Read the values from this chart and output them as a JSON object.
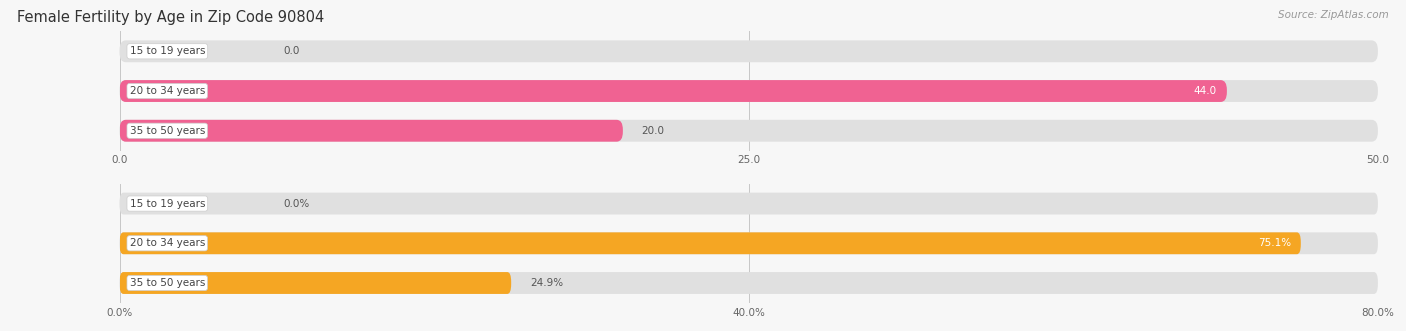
{
  "title": "Female Fertility by Age in Zip Code 90804",
  "source": "Source: ZipAtlas.com",
  "top_chart": {
    "categories": [
      "15 to 19 years",
      "20 to 34 years",
      "35 to 50 years"
    ],
    "values": [
      0.0,
      44.0,
      20.0
    ],
    "max_value": 50.0,
    "x_ticks": [
      0.0,
      25.0,
      50.0
    ],
    "x_tick_labels": [
      "0.0",
      "25.0",
      "50.0"
    ],
    "bar_color_main": "#f06292",
    "value_labels": [
      "0.0",
      "44.0",
      "20.0"
    ],
    "value_inside": [
      false,
      true,
      false
    ]
  },
  "bottom_chart": {
    "categories": [
      "15 to 19 years",
      "20 to 34 years",
      "35 to 50 years"
    ],
    "values": [
      0.0,
      75.1,
      24.9
    ],
    "max_value": 80.0,
    "x_ticks": [
      0.0,
      40.0,
      80.0
    ],
    "x_tick_labels": [
      "0.0%",
      "40.0%",
      "80.0%"
    ],
    "bar_color_main": "#f5a623",
    "value_labels": [
      "0.0%",
      "75.1%",
      "24.9%"
    ],
    "value_inside": [
      false,
      true,
      false
    ]
  },
  "bg_color": "#f7f7f7",
  "bar_bg_color": "#e0e0e0",
  "title_fontsize": 10.5,
  "label_fontsize": 7.5,
  "tick_fontsize": 7.5,
  "source_fontsize": 7.5,
  "bar_height": 0.55
}
